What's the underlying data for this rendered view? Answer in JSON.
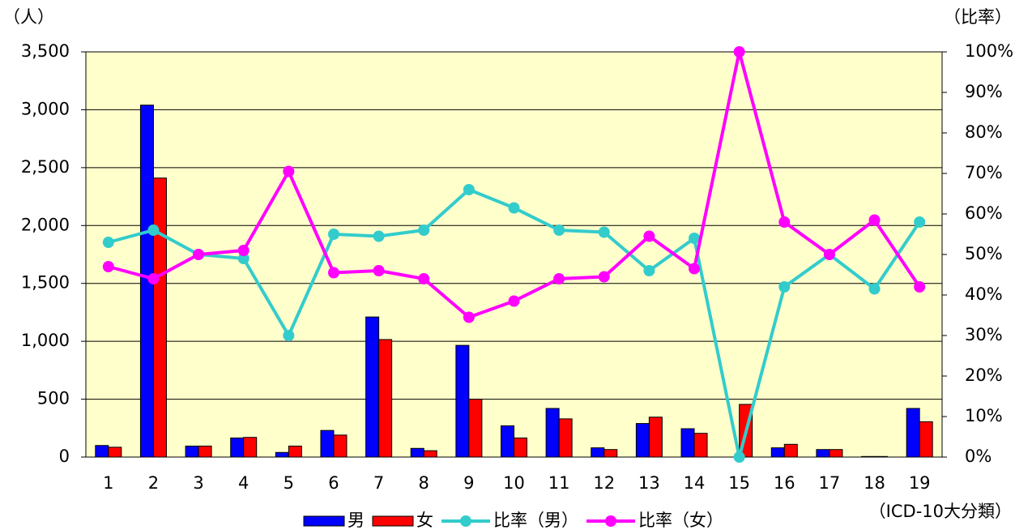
{
  "chart_data": {
    "type": "bar-line",
    "y_label": "（人）",
    "y2_label": "（比率）",
    "x_label": "（ICD-10大分類）",
    "categories": [
      "1",
      "2",
      "3",
      "4",
      "5",
      "6",
      "7",
      "8",
      "9",
      "10",
      "11",
      "12",
      "13",
      "14",
      "15",
      "16",
      "17",
      "18",
      "19"
    ],
    "series": [
      {
        "name": "男",
        "type": "bar",
        "color": "#0000ff",
        "values": [
          100,
          3040,
          95,
          165,
          40,
          230,
          1210,
          75,
          965,
          270,
          420,
          80,
          290,
          245,
          0,
          80,
          65,
          5,
          420
        ]
      },
      {
        "name": "女",
        "type": "bar",
        "color": "#ff0000",
        "values": [
          85,
          2410,
          95,
          170,
          95,
          190,
          1015,
          55,
          500,
          165,
          330,
          65,
          345,
          205,
          455,
          110,
          65,
          5,
          305
        ]
      },
      {
        "name": "比率（男）",
        "type": "line",
        "axis": "y2",
        "color": "#33cccc",
        "values": [
          53,
          56,
          50,
          49,
          30,
          55,
          54.5,
          56,
          66,
          61.5,
          56,
          55.5,
          46,
          54,
          0,
          42,
          50,
          41.5,
          58
        ]
      },
      {
        "name": "比率（女）",
        "type": "line",
        "axis": "y2",
        "color": "#ff00ff",
        "values": [
          47,
          44,
          50,
          51,
          70.5,
          45.5,
          46,
          44,
          34.5,
          38.5,
          44,
          44.5,
          54.5,
          46.5,
          100,
          58,
          50,
          58.5,
          42
        ]
      }
    ],
    "ylim": [
      0,
      3500
    ],
    "yticks": [
      0,
      500,
      {
        "value": 1000,
        "label": "1,000"
      },
      {
        "value": 1500,
        "label": "1,500"
      },
      {
        "value": 2000,
        "label": "2,000"
      },
      {
        "value": 2500,
        "label": "2,500"
      },
      {
        "value": 3000,
        "label": "3,000"
      },
      {
        "value": 3500,
        "label": "3,500"
      }
    ],
    "y2lim": [
      0,
      100
    ],
    "y2ticks": [
      {
        "value": 0,
        "label": "0%"
      },
      {
        "value": 10,
        "label": "10%"
      },
      {
        "value": 20,
        "label": "20%"
      },
      {
        "value": 30,
        "label": "30%"
      },
      {
        "value": 40,
        "label": "40%"
      },
      {
        "value": 50,
        "label": "50%"
      },
      {
        "value": 60,
        "label": "60%"
      },
      {
        "value": 70,
        "label": "70%"
      },
      {
        "value": 80,
        "label": "80%"
      },
      {
        "value": 90,
        "label": "90%"
      },
      {
        "value": 100,
        "label": "100%"
      }
    ],
    "grid": true,
    "plot_background": "#ffffcc",
    "legend": "bottom"
  }
}
